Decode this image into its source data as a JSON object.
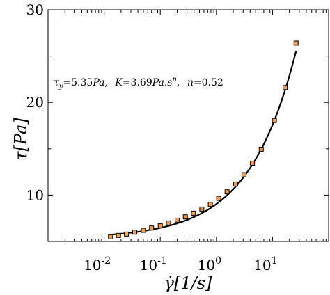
{
  "chart_data": {
    "type": "scatter",
    "title": "",
    "x_scale": "log",
    "xlim": [
      0.001,
      100
    ],
    "ylim": [
      5,
      30
    ],
    "x_ticks": [
      {
        "value": 0.01,
        "base": "10",
        "exp": "-2"
      },
      {
        "value": 0.1,
        "base": "10",
        "exp": "-1"
      },
      {
        "value": 1,
        "base": "10",
        "exp": "0"
      },
      {
        "value": 10,
        "base": "10",
        "exp": "1"
      }
    ],
    "y_ticks": [
      {
        "value": 10,
        "label": "10"
      },
      {
        "value": 20,
        "label": "20"
      },
      {
        "value": 30,
        "label": "30"
      }
    ],
    "xlabel": "γ̇[1/s]",
    "ylabel": "τ[Pa]",
    "grid": false,
    "annotation": "τy =5.35Pa, K =3.69Pa.s^n, n =0.52",
    "fit": {
      "tau_y": 5.35,
      "K": 3.69,
      "n": 0.52
    },
    "series": [
      {
        "marker": "square",
        "color": "#f39a4d",
        "x": [
          0.013,
          0.018,
          0.025,
          0.035,
          0.05,
          0.07,
          0.1,
          0.14,
          0.2,
          0.28,
          0.39,
          0.55,
          0.78,
          1.1,
          1.55,
          2.2,
          3.1,
          4.4,
          6.3,
          10.8,
          16.8,
          26.3
        ],
        "y": [
          5.5,
          5.65,
          5.8,
          6.0,
          6.2,
          6.45,
          6.7,
          7.0,
          7.3,
          7.65,
          8.05,
          8.5,
          9.0,
          9.65,
          10.35,
          11.2,
          12.2,
          13.45,
          14.95,
          18.05,
          21.6,
          26.4
        ]
      }
    ]
  },
  "annotation_text": {
    "tau": "τ",
    "tau_sub": "y",
    "tau_val": "=5.35",
    "tau_unit": "Pa,",
    "k": "K",
    "k_val": "=3.69",
    "k_unit": "Pa.s",
    "k_exp": "n",
    "k_comma": ",",
    "n": "n",
    "n_val": "=0.52"
  },
  "axis_text": {
    "ylabel_tau": "τ",
    "ylabel_unit": "[Pa]",
    "xlabel_gamma": "γ̇",
    "xlabel_unit": "[1/s]"
  }
}
